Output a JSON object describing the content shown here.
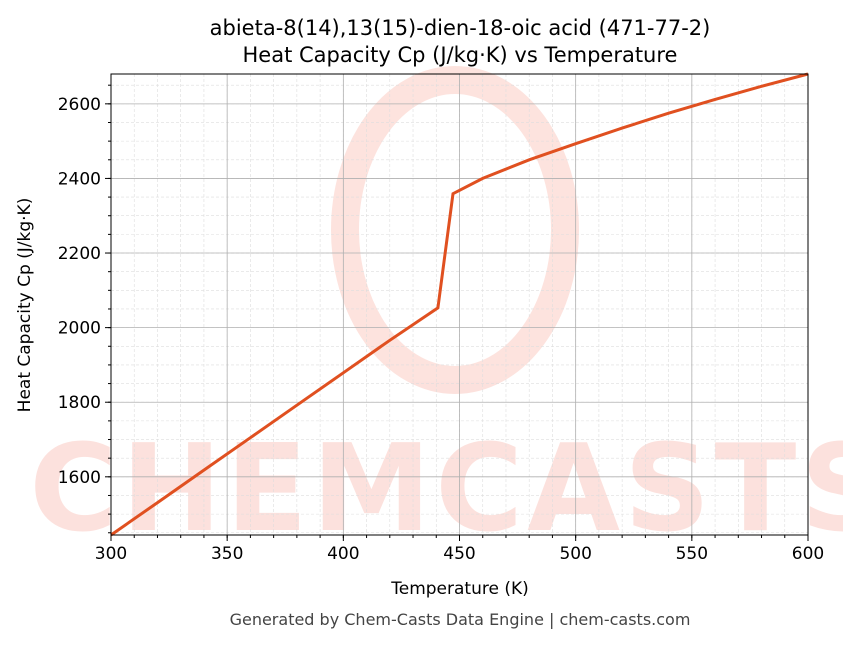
{
  "chart_data": {
    "type": "line",
    "title": "abieta-8(14),13(15)-dien-18-oic acid (471-77-2)",
    "subtitle": "Heat Capacity Cp (J/kg·K) vs Temperature",
    "xlabel": "Temperature (K)",
    "ylabel": "Heat Capacity Cp (J/kg·K)",
    "xlim": [
      300,
      600
    ],
    "ylim": [
      1444,
      2680
    ],
    "xticks": [
      300,
      350,
      400,
      450,
      500,
      550,
      600
    ],
    "yticks": [
      1600,
      1800,
      2000,
      2200,
      2400,
      2600
    ],
    "grid": true,
    "series": [
      {
        "color": "#e05020",
        "x": [
          300,
          320,
          340,
          360,
          380,
          400,
          420,
          440.7,
          447.2,
          460,
          480,
          500,
          520,
          540,
          560,
          580,
          600
        ],
        "y": [
          1444,
          1531,
          1618,
          1705,
          1792,
          1879,
          1966,
          2053,
          2359,
          2400,
          2450,
          2493,
          2535,
          2575,
          2612,
          2647,
          2680
        ]
      }
    ],
    "watermark": "CHEMCASTS"
  },
  "footer": "Generated by Chem-Casts Data Engine | chem-casts.com"
}
